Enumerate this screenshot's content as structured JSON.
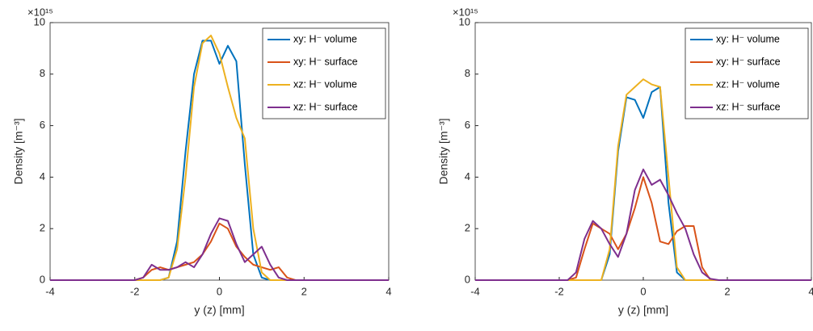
{
  "chart_data": [
    {
      "type": "line",
      "xlabel": "y (z) [mm]",
      "ylabel": "Density [m⁻³]",
      "y_exponent": "×10¹⁵",
      "x": [
        -4,
        -2,
        -1.8,
        -1.6,
        -1.4,
        -1.2,
        -1,
        -0.8,
        -0.6,
        -0.4,
        -0.2,
        0,
        0.2,
        0.4,
        0.6,
        0.8,
        1,
        1.2,
        1.4,
        1.6,
        1.8,
        2,
        4
      ],
      "series": [
        {
          "name": "xy: H⁻ volume",
          "color": "#0072BD",
          "values": [
            0,
            0,
            0,
            0,
            0,
            0.1,
            1.5,
            5,
            8,
            9.3,
            9.3,
            8.4,
            9.1,
            8.5,
            4.5,
            1,
            0.1,
            0,
            0,
            0,
            0,
            0,
            0
          ]
        },
        {
          "name": "xy: H⁻ surface",
          "color": "#D95319",
          "values": [
            0,
            0,
            0.1,
            0.4,
            0.5,
            0.4,
            0.5,
            0.6,
            0.7,
            1,
            1.5,
            2.2,
            2,
            1.3,
            0.9,
            0.6,
            0.5,
            0.4,
            0.5,
            0.1,
            0,
            0,
            0
          ]
        },
        {
          "name": "xz: H⁻ volume",
          "color": "#EDB120",
          "values": [
            0,
            0,
            0,
            0,
            0,
            0.1,
            1.2,
            4,
            7.5,
            9.2,
            9.5,
            8.8,
            7.5,
            6.3,
            5.5,
            2,
            0.3,
            0,
            0,
            0,
            0,
            0,
            0
          ]
        },
        {
          "name": "xz: H⁻ surface",
          "color": "#7E2F8E",
          "values": [
            0,
            0,
            0.1,
            0.6,
            0.4,
            0.4,
            0.5,
            0.7,
            0.5,
            1,
            1.8,
            2.4,
            2.3,
            1.4,
            0.7,
            1,
            1.3,
            0.6,
            0.1,
            0,
            0,
            0,
            0
          ]
        }
      ],
      "xlim": [
        -4,
        4
      ],
      "ylim": [
        0,
        10
      ],
      "xticks": [
        -4,
        -2,
        0,
        2,
        4
      ],
      "yticks": [
        0,
        2,
        4,
        6,
        8,
        10
      ],
      "legend": "northeast",
      "box": true
    },
    {
      "type": "line",
      "xlabel": "y (z) [mm]",
      "ylabel": "Density [m⁻³]",
      "y_exponent": "×10¹⁵",
      "x": [
        -4,
        -2,
        -1.8,
        -1.6,
        -1.4,
        -1.2,
        -1,
        -0.8,
        -0.6,
        -0.4,
        -0.2,
        0,
        0.2,
        0.4,
        0.6,
        0.8,
        1,
        1.2,
        1.4,
        1.6,
        1.8,
        2,
        4
      ],
      "series": [
        {
          "name": "xy: H⁻ volume",
          "color": "#0072BD",
          "values": [
            0,
            0,
            0,
            0,
            0,
            0,
            0,
            1,
            5,
            7.1,
            7,
            6.3,
            7.3,
            7.5,
            3,
            0.3,
            0,
            0,
            0,
            0,
            0,
            0,
            0
          ]
        },
        {
          "name": "xy: H⁻ surface",
          "color": "#D95319",
          "values": [
            0,
            0,
            0,
            0.1,
            1.2,
            2.2,
            2,
            1.8,
            1.2,
            1.8,
            2.8,
            4,
            3,
            1.5,
            1.4,
            1.9,
            2.1,
            2.1,
            0.5,
            0,
            0,
            0,
            0
          ]
        },
        {
          "name": "xz: H⁻ volume",
          "color": "#EDB120",
          "values": [
            0,
            0,
            0,
            0,
            0,
            0,
            0,
            1.2,
            5.2,
            7.2,
            7.5,
            7.8,
            7.6,
            7.5,
            4,
            0.5,
            0,
            0,
            0,
            0,
            0,
            0,
            0
          ]
        },
        {
          "name": "xz: H⁻ surface",
          "color": "#7E2F8E",
          "values": [
            0,
            0,
            0,
            0.3,
            1.6,
            2.3,
            2,
            1.4,
            0.9,
            1.8,
            3.5,
            4.3,
            3.7,
            3.9,
            3.3,
            2.6,
            2,
            1,
            0.3,
            0.05,
            0,
            0,
            0
          ]
        }
      ],
      "xlim": [
        -4,
        4
      ],
      "ylim": [
        0,
        10
      ],
      "xticks": [
        -4,
        -2,
        0,
        2,
        4
      ],
      "yticks": [
        0,
        2,
        4,
        6,
        8,
        10
      ],
      "legend": "northeast",
      "box": true
    }
  ]
}
